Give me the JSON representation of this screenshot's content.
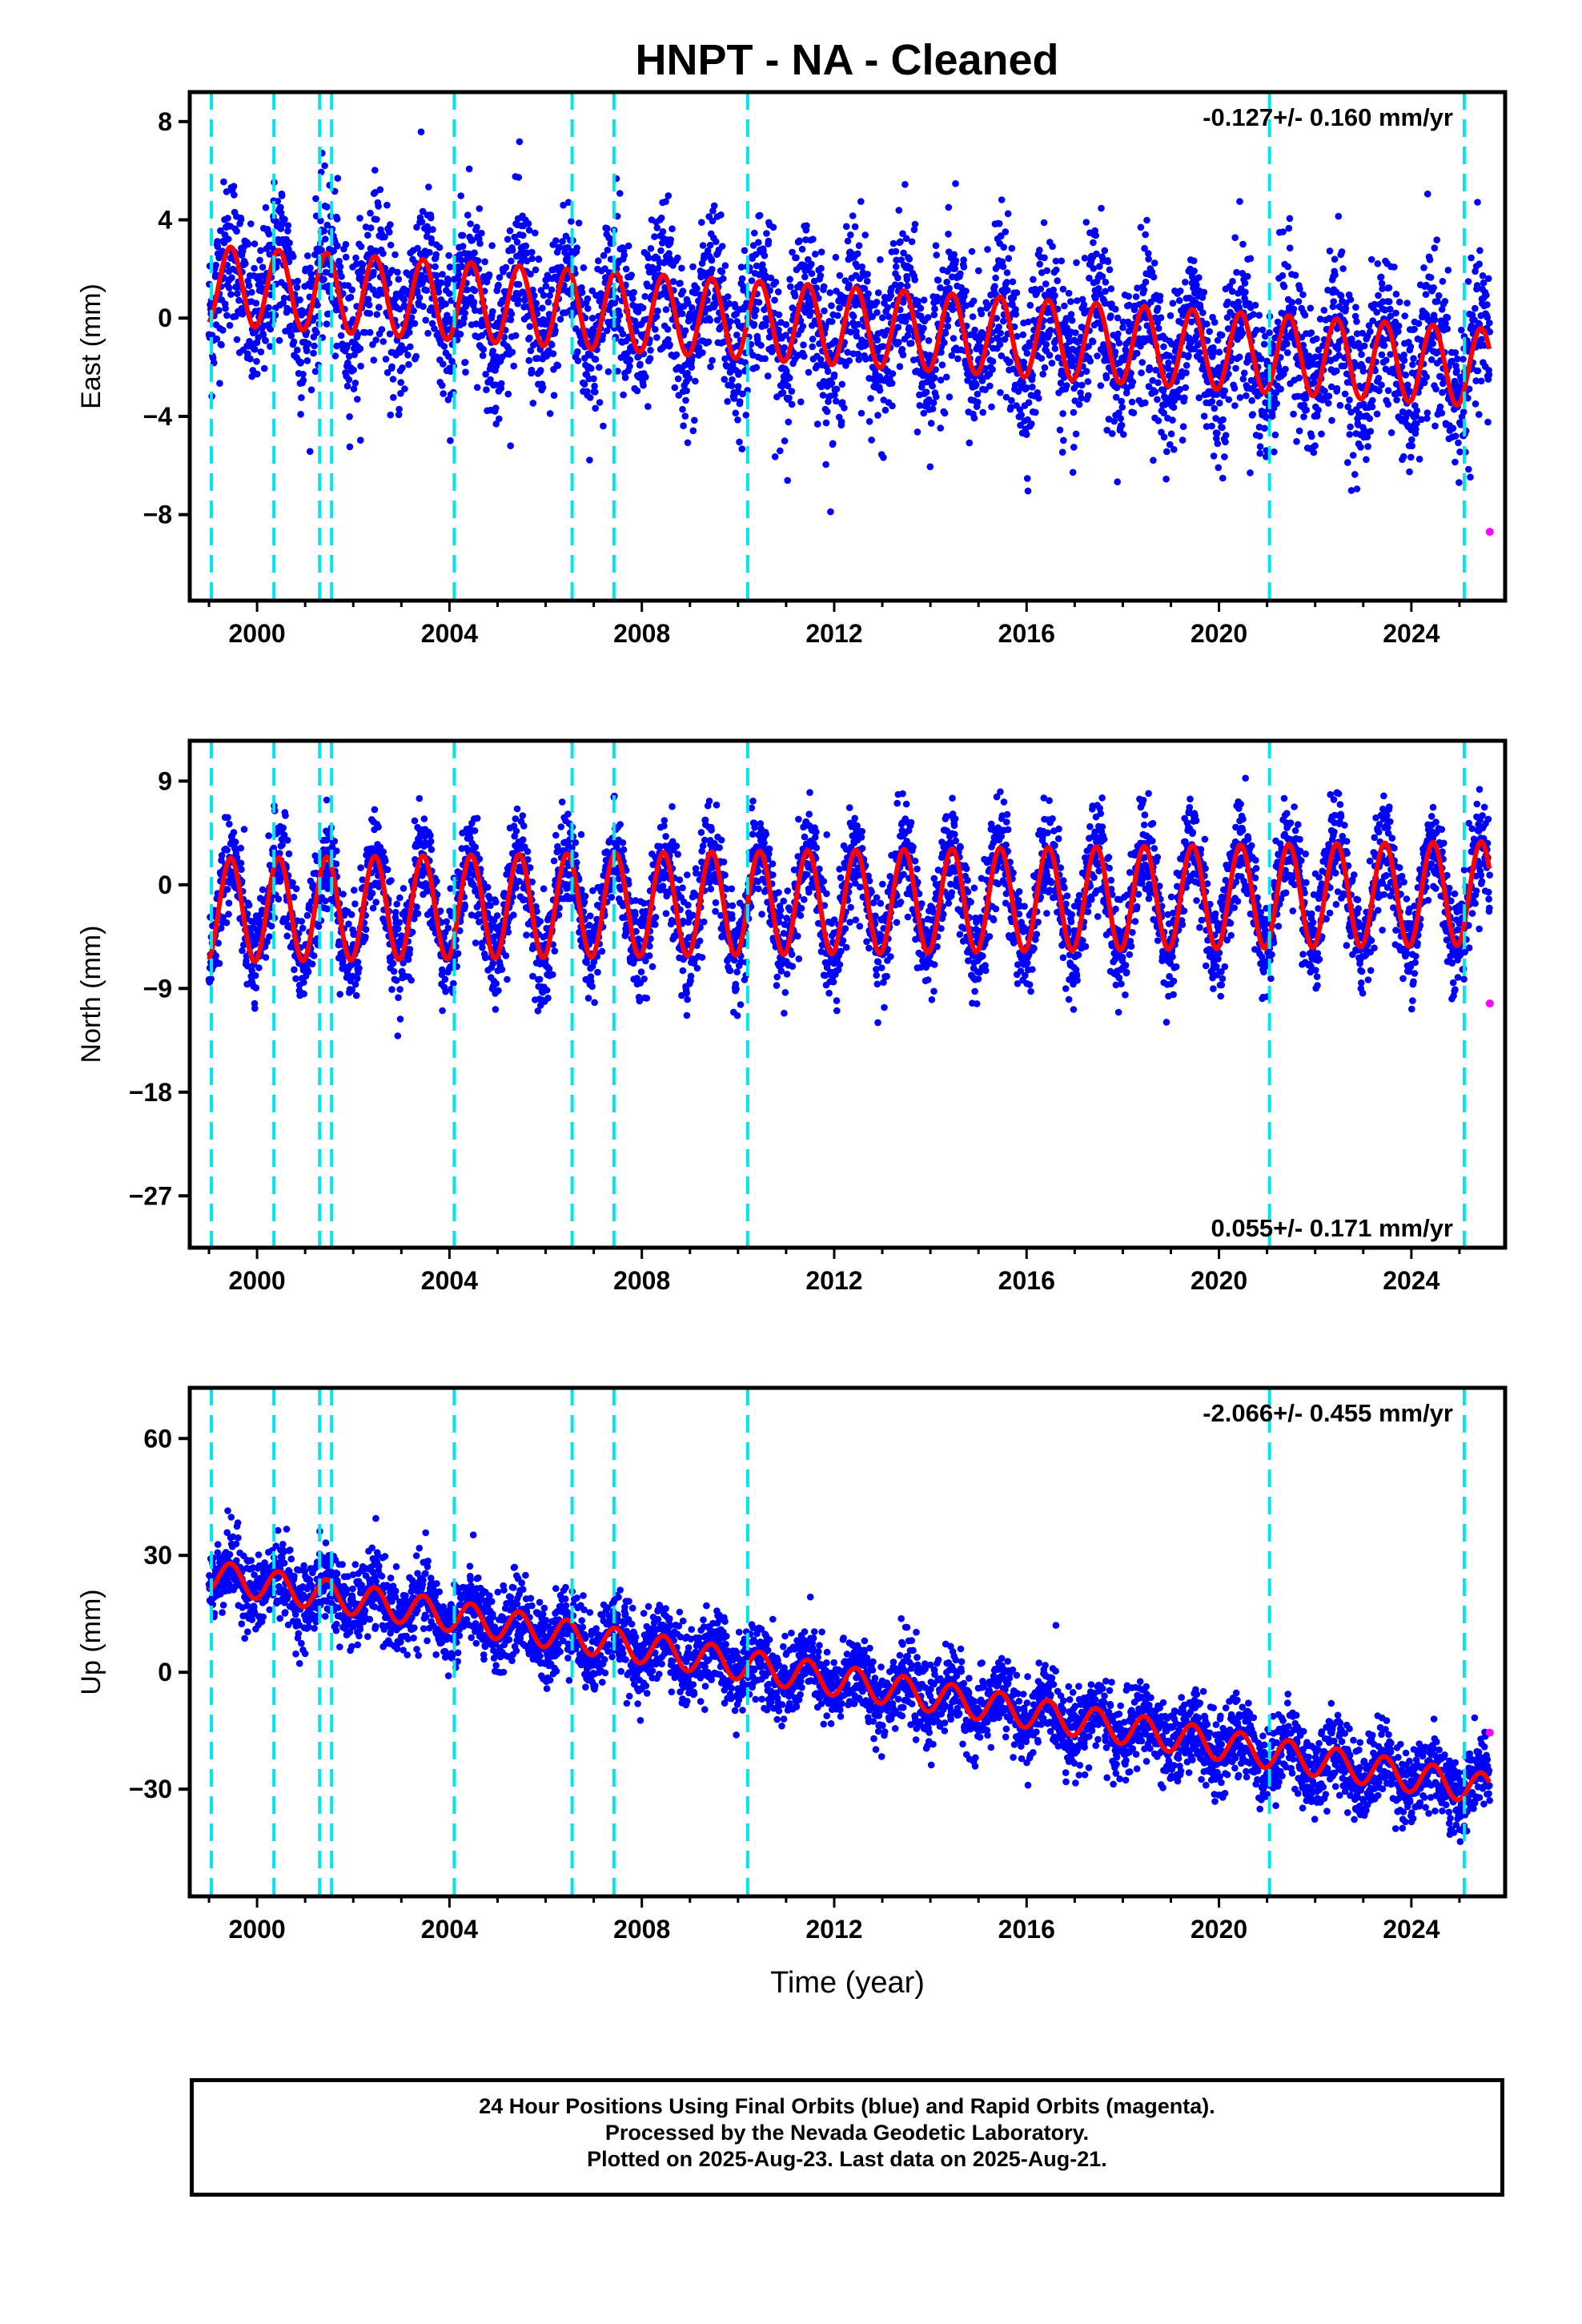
{
  "title": "HNPT  - NA - Cleaned",
  "footer": {
    "line1": "24 Hour Positions Using Final Orbits (blue) and Rapid Orbits (magenta).",
    "line2": "Processed by the Nevada Geodetic Laboratory.",
    "line3": "Plotted on 2025-Aug-23. Last data on 2025-Aug-21."
  },
  "colors": {
    "final": "#0000ff",
    "rapid": "#ff00ff",
    "model": "#ff0000",
    "events": "#00e5ee",
    "frame": "#000000"
  },
  "chart_data": [
    {
      "type": "scatter",
      "panel": "east",
      "title": "",
      "ylabel": "East (mm)",
      "xlabel": "",
      "rate": "-0.127+/- 0.160 mm/yr",
      "rate_position": "top-right",
      "xlim": [
        1998.6,
        2025.95
      ],
      "ylim": [
        -11.5,
        9.2
      ],
      "xticks": [
        "2000",
        "2004",
        "2008",
        "2012",
        "2016",
        "2020",
        "2024"
      ],
      "yticks": [
        "8",
        "4",
        "0",
        "−4",
        "−8"
      ],
      "ytick_values": [
        8,
        4,
        0,
        -4,
        -8
      ],
      "model": {
        "trend": -0.127,
        "annual_amp": 1.6,
        "offset_at_2012": -0.3
      },
      "scatter_sigma": 1.6,
      "rapid_point": {
        "x": 2025.63,
        "y": -8.7
      }
    },
    {
      "type": "scatter",
      "panel": "north",
      "title": "",
      "ylabel": "North (mm)",
      "xlabel": "",
      "rate": "0.055+/- 0.171 mm/yr",
      "rate_position": "bottom-right",
      "xlim": [
        1998.6,
        2025.95
      ],
      "ylim": [
        -31.5,
        12.5
      ],
      "xticks": [
        "2000",
        "2004",
        "2008",
        "2012",
        "2016",
        "2020",
        "2024"
      ],
      "yticks": [
        "9",
        "0",
        "−9",
        "−18",
        "−27"
      ],
      "ytick_values": [
        9,
        0,
        -9,
        -18,
        -27
      ],
      "model": {
        "trend": 0.055,
        "annual_amp": 4.5,
        "offset_at_2012": -1.5
      },
      "scatter_sigma": 2.2,
      "rapid_point": {
        "x": 2025.63,
        "y": -10.3
      }
    },
    {
      "type": "scatter",
      "panel": "up",
      "title": "",
      "ylabel": "Up (mm)",
      "xlabel": "Time (year)",
      "rate": "-2.066+/- 0.455 mm/yr",
      "rate_position": "top-right",
      "xlim": [
        1998.6,
        2025.95
      ],
      "ylim": [
        -57.5,
        73
      ],
      "xticks": [
        "2000",
        "2004",
        "2008",
        "2012",
        "2016",
        "2020",
        "2024"
      ],
      "yticks": [
        "60",
        "30",
        "0",
        "−30"
      ],
      "ytick_values": [
        60,
        30,
        0,
        -30
      ],
      "model": {
        "trend": -2.066,
        "annual_amp": 4.0,
        "offset_at_2012": -2.0
      },
      "scatter_sigma": 5.0,
      "rapid_point": {
        "x": 2025.63,
        "y": -15.5
      }
    }
  ],
  "events": [
    1999.05,
    2000.35,
    2001.3,
    2001.55,
    2004.1,
    2006.55,
    2007.42,
    2010.2,
    2021.05,
    2025.1
  ],
  "xtick_values": [
    2000,
    2004,
    2008,
    2012,
    2016,
    2020,
    2024
  ],
  "data_span": [
    1999.0,
    2025.63
  ]
}
